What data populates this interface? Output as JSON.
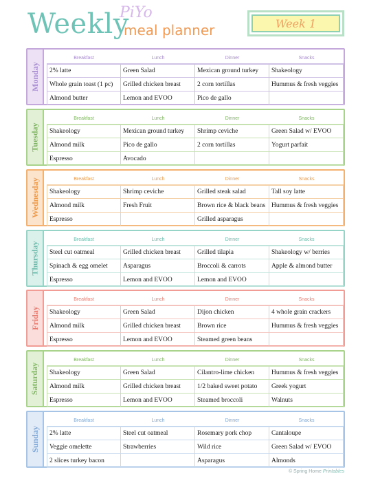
{
  "header": {
    "title": "Weekly",
    "brand": "PiYo",
    "subtitle": "meal planner",
    "week_label": "Week 1"
  },
  "columns": [
    "Breakfast",
    "Lunch",
    "Dinner",
    "Snacks"
  ],
  "days": [
    {
      "name": "Monday",
      "colors": {
        "border": "#c4a8dc",
        "tab": "#ede2f5",
        "text": "#a78bd0",
        "grid": "#cfc0e6"
      },
      "rows": [
        [
          "2% latte",
          "Green Salad",
          "Mexican ground turkey",
          "Shakeology"
        ],
        [
          "Whole grain toast (1 pc)",
          "Grilled chicken breast",
          "2 corn tortillas",
          "Hummus & fresh veggies"
        ],
        [
          "Almond butter",
          "Lemon and EVOO",
          "Pico de gallo",
          ""
        ]
      ]
    },
    {
      "name": "Tuesday",
      "colors": {
        "border": "#a8d38a",
        "tab": "#e2f0d6",
        "text": "#7fb661",
        "grid": "#c5e2b0"
      },
      "rows": [
        [
          "Shakeology",
          "Mexican ground turkey",
          "Shrimp ceviche",
          "Green Salad w/ EVOO"
        ],
        [
          "Almond milk",
          "Pico de gallo",
          "2 corn tortillas",
          "Yogurt parfait"
        ],
        [
          "Espresso",
          "Avocado",
          "",
          ""
        ]
      ]
    },
    {
      "name": "Wednesday",
      "colors": {
        "border": "#f3b06f",
        "tab": "#fbe3cc",
        "text": "#ec9a4c",
        "grid": "#f5cfa6"
      },
      "rows": [
        [
          "Shakeology",
          "Shrimp ceviche",
          "Grilled steak salad",
          "Tall soy latte"
        ],
        [
          "Almond milk",
          "Fresh Fruit",
          "Brown rice & black beans",
          "Hummus & fresh veggies"
        ],
        [
          "Espresso",
          "",
          "Grilled asparagus",
          ""
        ]
      ]
    },
    {
      "name": "Thursday",
      "colors": {
        "border": "#96d4c7",
        "tab": "#daf0eb",
        "text": "#6cbcac",
        "grid": "#bfe4dc"
      },
      "rows": [
        [
          "Steel cut oatmeal",
          "Grilled chicken breast",
          "Grilled tilapia",
          "Shakeology w/ berries"
        ],
        [
          "Spinach & egg omelet",
          "Asparagus",
          "Broccoli & carrots",
          "Apple & almond butter"
        ],
        [
          "Espresso",
          "Lemon and EVOO",
          "Lemon and EVOO",
          ""
        ]
      ]
    },
    {
      "name": "Friday",
      "colors": {
        "border": "#f19c94",
        "tab": "#fbdedb",
        "text": "#e77d72",
        "grid": "#f5c3be"
      },
      "rows": [
        [
          "Shakeology",
          "Green Salad",
          "Dijon chicken",
          "4 whole grain crackers"
        ],
        [
          "Almond milk",
          "Grilled chicken breast",
          "Brown rice",
          "Hummus & fresh veggies"
        ],
        [
          "Espresso",
          "Lemon and EVOO",
          "Steamed green beans",
          ""
        ]
      ]
    },
    {
      "name": "Saturday",
      "colors": {
        "border": "#a8d38a",
        "tab": "#e2f0d6",
        "text": "#7fb661",
        "grid": "#c5e2b0"
      },
      "rows": [
        [
          "Shakeology",
          "Green Salad",
          "Cilantro-lime chicken",
          "Hummus & fresh veggies"
        ],
        [
          "Almond milk",
          "Grilled chicken breast",
          "1/2 baked sweet potato",
          "Greek yogurt"
        ],
        [
          "Espresso",
          "Lemon and EVOO",
          "Steamed broccoli",
          "Walnuts"
        ]
      ]
    },
    {
      "name": "Sunday",
      "colors": {
        "border": "#a6c4e6",
        "tab": "#e0ebf7",
        "text": "#7fa6d4",
        "grid": "#c6d9ef"
      },
      "rows": [
        [
          "2% latte",
          "Steel cut oatmeal",
          "Rosemary pork chop",
          "Cantaloupe"
        ],
        [
          "Veggie omelette",
          "Strawberries",
          "Wild rice",
          "Green Salad w/ EVOO"
        ],
        [
          "2 slices turkey bacon",
          "",
          "Asparagus",
          "Almonds"
        ]
      ]
    }
  ],
  "footer": {
    "prefix": "© Spring Home",
    "brand": "Printables"
  }
}
